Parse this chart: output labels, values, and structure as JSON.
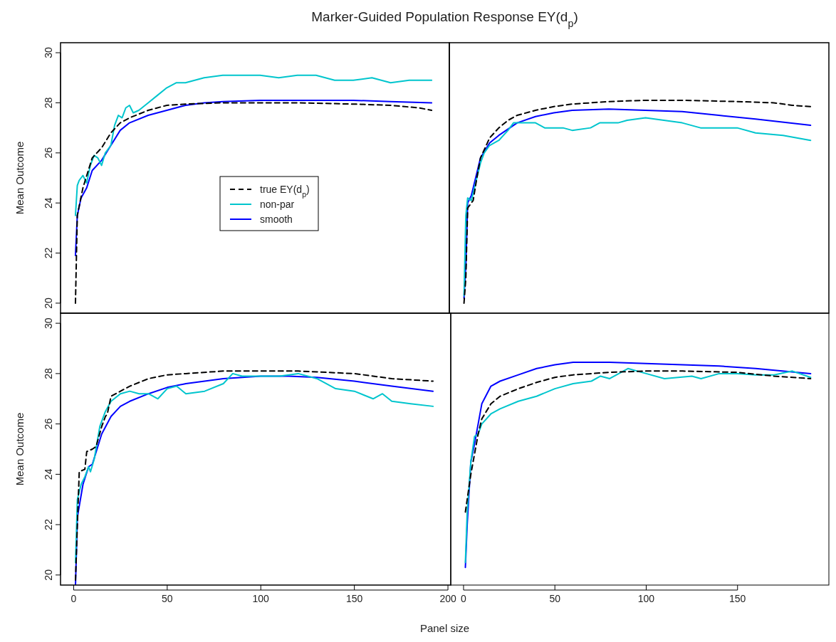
{
  "chart_data": [
    {
      "type": "line",
      "title": "Marker-Guided Population Response EY(d$_{p}$)",
      "ylabel": "Mean Outcome",
      "xlim": [
        -7,
        201.5
      ],
      "ylim": [
        19.6,
        30.4
      ],
      "yticks": [
        20,
        22,
        24,
        26,
        28,
        30
      ],
      "tick_labels": "y",
      "legend": "center",
      "grid": false,
      "series": [
        {
          "name": "true EY(d$_{p}$)",
          "color": "#000000",
          "line_style": "dashed",
          "x": [
            1,
            2,
            5,
            10,
            15,
            20,
            25,
            30,
            40,
            50,
            60,
            80,
            100,
            120,
            150,
            170,
            185,
            192
          ],
          "values": [
            20,
            23.5,
            24.6,
            25.8,
            26.2,
            26.8,
            27.2,
            27.4,
            27.7,
            27.9,
            27.95,
            28,
            28,
            28,
            27.95,
            27.9,
            27.8,
            27.7
          ]
        },
        {
          "name": "non-par",
          "color": "#00c5cd",
          "line_style": "solid",
          "x": [
            1,
            2,
            3,
            5,
            7,
            9,
            11,
            13,
            15,
            17,
            20,
            22,
            24,
            26,
            28,
            30,
            32,
            35,
            40,
            45,
            50,
            55,
            60,
            65,
            70,
            80,
            90,
            100,
            110,
            120,
            130,
            140,
            150,
            160,
            170,
            180,
            192
          ],
          "values": [
            23.5,
            24.7,
            24.9,
            25.1,
            24.8,
            25.5,
            25.9,
            25.8,
            25.5,
            26,
            26.3,
            27.1,
            27.5,
            27.4,
            27.8,
            27.9,
            27.6,
            27.7,
            28,
            28.3,
            28.6,
            28.8,
            28.8,
            28.9,
            29,
            29.1,
            29.1,
            29.1,
            29,
            29.1,
            29.1,
            28.9,
            28.9,
            29,
            28.8,
            28.9,
            28.9
          ]
        },
        {
          "name": "smooth",
          "color": "#0000ff",
          "line_style": "solid",
          "x": [
            1,
            2,
            4,
            7,
            10,
            15,
            20,
            25,
            30,
            40,
            50,
            60,
            70,
            80,
            100,
            120,
            150,
            170,
            192
          ],
          "values": [
            21.9,
            23.5,
            24.2,
            24.6,
            25.3,
            25.7,
            26.3,
            26.9,
            27.2,
            27.5,
            27.7,
            27.9,
            28,
            28.05,
            28.1,
            28.1,
            28.1,
            28.05,
            28
          ]
        }
      ]
    },
    {
      "type": "line",
      "xlim": [
        -7,
        200
      ],
      "ylim": [
        19.6,
        30.4
      ],
      "tick_labels": false,
      "grid": false,
      "series": [
        {
          "color": "#000000",
          "line_style": "dashed",
          "x": [
            1,
            2,
            3,
            6,
            8,
            10,
            15,
            20,
            25,
            30,
            40,
            50,
            60,
            80,
            100,
            120,
            150,
            170,
            180,
            190
          ],
          "values": [
            20,
            21,
            23.8,
            24.1,
            25,
            25.8,
            26.6,
            27,
            27.3,
            27.5,
            27.7,
            27.85,
            27.95,
            28.05,
            28.1,
            28.1,
            28.05,
            28,
            27.9,
            27.85
          ]
        },
        {
          "color": "#00c5cd",
          "line_style": "solid",
          "x": [
            1,
            2,
            3,
            5,
            8,
            10,
            12,
            15,
            20,
            25,
            28,
            32,
            40,
            45,
            55,
            60,
            70,
            75,
            85,
            90,
            100,
            110,
            120,
            130,
            140,
            150,
            160,
            175,
            190
          ],
          "values": [
            20.3,
            23.5,
            24.2,
            24.1,
            25,
            25.6,
            26,
            26.3,
            26.5,
            26.9,
            27.2,
            27.2,
            27.2,
            27,
            27,
            26.9,
            27,
            27.2,
            27.2,
            27.3,
            27.4,
            27.3,
            27.2,
            27,
            27,
            27,
            26.8,
            26.7,
            26.5
          ]
        },
        {
          "color": "#0000ff",
          "line_style": "solid",
          "x": [
            1,
            2,
            3,
            5,
            8,
            10,
            15,
            20,
            30,
            40,
            50,
            60,
            80,
            100,
            120,
            140,
            160,
            190
          ],
          "values": [
            20.2,
            21.5,
            24,
            24.3,
            25.2,
            25.8,
            26.4,
            26.7,
            27.2,
            27.45,
            27.6,
            27.7,
            27.75,
            27.7,
            27.65,
            27.5,
            27.35,
            27.1
          ]
        }
      ]
    },
    {
      "type": "line",
      "xlabel": "Panel size",
      "ylabel": "Mean Outcome",
      "xlim": [
        -7,
        201.5
      ],
      "ylim": [
        19.6,
        30.4
      ],
      "xticks": [
        0,
        50,
        100,
        150,
        200
      ],
      "yticks": [
        20,
        22,
        24,
        26,
        28,
        30
      ],
      "grid": false,
      "series": [
        {
          "color": "#000000",
          "line_style": "dashed",
          "x": [
            1,
            2,
            3,
            6,
            7,
            10,
            12,
            15,
            17,
            18,
            20,
            25,
            30,
            40,
            50,
            60,
            80,
            100,
            120,
            150,
            170,
            192
          ],
          "values": [
            19.8,
            22,
            24.1,
            24.2,
            24.9,
            25,
            25.1,
            25.9,
            26.3,
            26.4,
            27.1,
            27.3,
            27.5,
            27.8,
            27.95,
            28,
            28.1,
            28.1,
            28.1,
            28,
            27.8,
            27.7
          ]
        },
        {
          "color": "#00c5cd",
          "line_style": "solid",
          "x": [
            1,
            2,
            4,
            6,
            8,
            9,
            11,
            14,
            17,
            20,
            25,
            30,
            35,
            40,
            45,
            50,
            55,
            60,
            70,
            80,
            85,
            90,
            100,
            110,
            120,
            130,
            140,
            150,
            160,
            165,
            170,
            180,
            192
          ],
          "values": [
            20.5,
            23,
            23.6,
            23.9,
            24.3,
            24.1,
            24.6,
            25.9,
            26.5,
            26.9,
            27.2,
            27.3,
            27.2,
            27.2,
            27,
            27.4,
            27.5,
            27.2,
            27.3,
            27.6,
            28,
            27.9,
            27.9,
            27.9,
            28,
            27.8,
            27.4,
            27.3,
            27,
            27.2,
            26.9,
            26.8,
            26.7
          ]
        },
        {
          "color": "#0000ff",
          "line_style": "solid",
          "x": [
            1,
            2,
            5,
            8,
            10,
            15,
            20,
            25,
            30,
            40,
            50,
            60,
            80,
            100,
            115,
            130,
            150,
            170,
            192
          ],
          "values": [
            19.6,
            22.3,
            23.6,
            24.3,
            24.4,
            25.6,
            26.3,
            26.7,
            26.9,
            27.2,
            27.45,
            27.6,
            27.8,
            27.9,
            27.9,
            27.85,
            27.7,
            27.5,
            27.3
          ]
        }
      ]
    },
    {
      "type": "line",
      "xlim": [
        -7,
        200
      ],
      "ylim": [
        19.6,
        30.4
      ],
      "xticks": [
        0,
        50,
        100,
        150
      ],
      "tick_labels": "x",
      "grid": false,
      "series": [
        {
          "color": "#000000",
          "line_style": "dashed",
          "x": [
            1,
            2,
            4,
            6,
            8,
            10,
            15,
            20,
            30,
            40,
            50,
            60,
            80,
            100,
            120,
            150,
            170,
            190
          ],
          "values": [
            22.5,
            23,
            24,
            24.8,
            25.6,
            26.2,
            26.8,
            27.1,
            27.4,
            27.65,
            27.85,
            27.95,
            28.05,
            28.1,
            28.1,
            28.05,
            27.9,
            27.8
          ]
        },
        {
          "color": "#00c5cd",
          "line_style": "solid",
          "x": [
            1,
            2,
            4,
            6,
            8,
            10,
            15,
            20,
            30,
            40,
            50,
            60,
            70,
            75,
            80,
            90,
            100,
            110,
            125,
            130,
            140,
            150,
            160,
            170,
            180,
            190
          ],
          "values": [
            20.5,
            22.5,
            24.5,
            25.5,
            25.6,
            26,
            26.4,
            26.6,
            26.9,
            27.1,
            27.4,
            27.6,
            27.7,
            27.9,
            27.8,
            28.2,
            28,
            27.8,
            27.9,
            27.8,
            28,
            28,
            27.95,
            27.95,
            28.1,
            27.85
          ]
        },
        {
          "color": "#0000ff",
          "line_style": "solid",
          "x": [
            1,
            2,
            4,
            6,
            10,
            15,
            20,
            30,
            40,
            50,
            60,
            80,
            100,
            120,
            140,
            160,
            190
          ],
          "values": [
            20.3,
            22,
            24.5,
            25.2,
            26.8,
            27.5,
            27.7,
            27.95,
            28.2,
            28.35,
            28.45,
            28.45,
            28.4,
            28.35,
            28.3,
            28.2,
            28
          ]
        }
      ]
    }
  ]
}
